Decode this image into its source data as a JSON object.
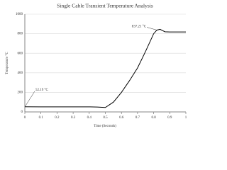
{
  "chart_data": {
    "type": "line",
    "title": "Single Cable Transient Temperature Analysis",
    "x_label": "Time (Seconds)",
    "y_label": "Temperature °C",
    "x": [
      0,
      0.1,
      0.2,
      0.3,
      0.4,
      0.45,
      0.5,
      0.55,
      0.6,
      0.65,
      0.7,
      0.75,
      0.8,
      0.82,
      0.84,
      0.87,
      0.9,
      1
    ],
    "series": [
      {
        "color": "#000000",
        "values": [
          52.19,
          52,
          52,
          52,
          52,
          50,
          45,
          100,
          200,
          320,
          450,
          620,
          800,
          837.21,
          845,
          820,
          818,
          818
        ]
      }
    ],
    "annotations": [
      "52.19 °C",
      "837.21 °C"
    ],
    "xlim": [
      0,
      1
    ],
    "xticks": [
      0,
      0.1,
      0.2,
      0.3,
      0.4,
      0.5,
      0.6,
      0.7,
      0.8,
      0.9,
      1
    ],
    "ylim": [
      0,
      1000
    ],
    "yticks": [
      0,
      200,
      400,
      600,
      800,
      1000
    ],
    "grid": true
  }
}
